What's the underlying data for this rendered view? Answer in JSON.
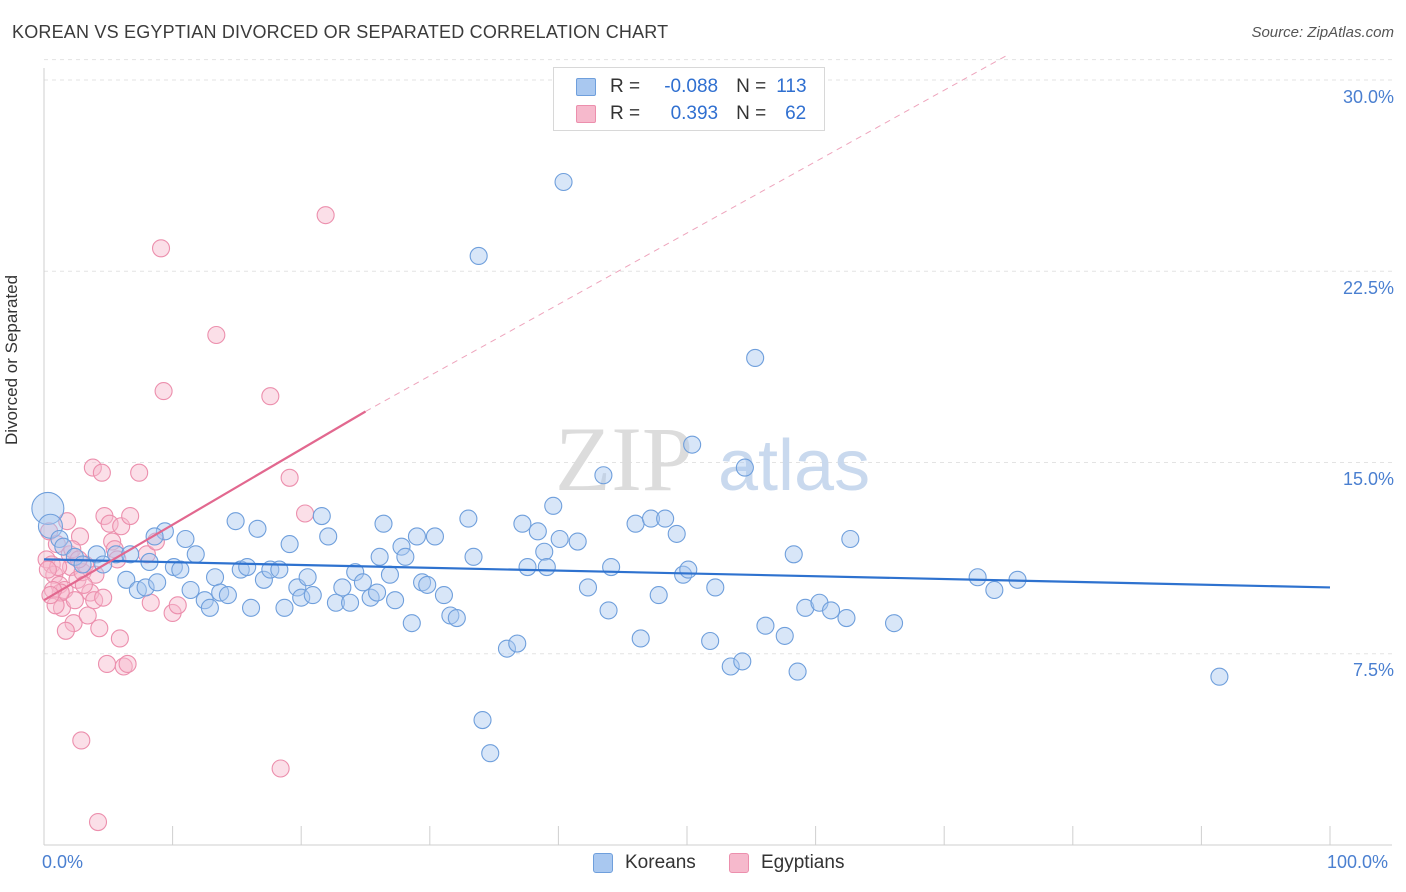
{
  "title": "KOREAN VS EGYPTIAN DIVORCED OR SEPARATED CORRELATION CHART",
  "source": "Source: ZipAtlas.com",
  "watermark": {
    "zip": "ZIP",
    "atlas": "atlas"
  },
  "colors": {
    "koreans_fill": "#a9c8f0",
    "koreans_stroke": "#6f9fdc",
    "koreans_line": "#2e72cf",
    "egyptians_fill": "#f6b9cc",
    "egyptians_stroke": "#ec8fad",
    "egyptians_line": "#e2688f",
    "grid": "#e3e3e3",
    "axis_label": "#4a7fd0"
  },
  "legend": {
    "rows": [
      {
        "r_label": "R =",
        "r_value": "-0.088",
        "n_label": "N =",
        "n_value": "113"
      },
      {
        "r_label": "R =",
        "r_value": "0.393",
        "n_label": "N =",
        "n_value": "62"
      }
    ]
  },
  "bottom_legend": {
    "koreans": "Koreans",
    "egyptians": "Egyptians"
  },
  "chart_data": {
    "type": "scatter",
    "title": "KOREAN VS EGYPTIAN DIVORCED OR SEPARATED CORRELATION CHART",
    "xlabel": "",
    "ylabel": "Divorced or Separated",
    "xlim": [
      0,
      100
    ],
    "ylim": [
      0,
      31
    ],
    "x_ticks": [
      "0.0%",
      "100.0%"
    ],
    "y_ticks": [
      "7.5%",
      "15.0%",
      "22.5%",
      "30.0%"
    ],
    "y_tick_values": [
      7.5,
      15.0,
      22.5,
      30.0
    ],
    "grid": true,
    "legend_position": "top-center",
    "series": [
      {
        "name": "Koreans",
        "trend": {
          "x": [
            0,
            100
          ],
          "y": [
            11.2,
            10.1
          ],
          "style": "solid"
        },
        "points": [
          [
            0.3,
            13.2
          ],
          [
            0.5,
            12.5
          ],
          [
            1.2,
            12.0
          ],
          [
            1.5,
            11.7
          ],
          [
            2.4,
            11.3
          ],
          [
            3.0,
            11.0
          ],
          [
            4.1,
            11.4
          ],
          [
            4.6,
            11.0
          ],
          [
            5.6,
            11.4
          ],
          [
            6.7,
            11.4
          ],
          [
            6.4,
            10.4
          ],
          [
            7.3,
            10.0
          ],
          [
            7.9,
            10.1
          ],
          [
            8.2,
            11.1
          ],
          [
            8.8,
            10.3
          ],
          [
            9.4,
            12.3
          ],
          [
            10.1,
            10.9
          ],
          [
            10.6,
            10.8
          ],
          [
            11.0,
            12.0
          ],
          [
            11.4,
            10.0
          ],
          [
            11.8,
            11.4
          ],
          [
            12.5,
            9.6
          ],
          [
            12.9,
            9.3
          ],
          [
            13.3,
            10.5
          ],
          [
            13.7,
            9.9
          ],
          [
            14.3,
            9.8
          ],
          [
            14.9,
            12.7
          ],
          [
            15.3,
            10.8
          ],
          [
            15.8,
            10.9
          ],
          [
            16.1,
            9.3
          ],
          [
            16.6,
            12.4
          ],
          [
            17.1,
            10.4
          ],
          [
            17.6,
            10.8
          ],
          [
            18.3,
            10.8
          ],
          [
            18.7,
            9.3
          ],
          [
            19.1,
            11.8
          ],
          [
            19.7,
            10.1
          ],
          [
            20.0,
            9.7
          ],
          [
            20.5,
            10.5
          ],
          [
            20.9,
            9.8
          ],
          [
            21.6,
            12.9
          ],
          [
            22.1,
            12.1
          ],
          [
            22.7,
            9.5
          ],
          [
            23.2,
            10.1
          ],
          [
            23.8,
            9.5
          ],
          [
            24.2,
            10.7
          ],
          [
            24.8,
            10.3
          ],
          [
            25.4,
            9.7
          ],
          [
            25.9,
            9.9
          ],
          [
            26.4,
            12.6
          ],
          [
            26.9,
            10.6
          ],
          [
            27.3,
            9.6
          ],
          [
            27.8,
            11.7
          ],
          [
            28.1,
            11.3
          ],
          [
            28.6,
            8.7
          ],
          [
            29.0,
            12.1
          ],
          [
            29.4,
            10.3
          ],
          [
            29.8,
            10.2
          ],
          [
            30.4,
            12.1
          ],
          [
            31.1,
            9.8
          ],
          [
            31.6,
            9.0
          ],
          [
            32.1,
            8.9
          ],
          [
            33.0,
            12.8
          ],
          [
            33.4,
            11.3
          ],
          [
            34.1,
            4.9
          ],
          [
            33.8,
            23.1
          ],
          [
            34.7,
            3.6
          ],
          [
            36.0,
            7.7
          ],
          [
            36.8,
            7.9
          ],
          [
            37.2,
            12.6
          ],
          [
            37.6,
            10.9
          ],
          [
            38.4,
            12.3
          ],
          [
            38.9,
            11.5
          ],
          [
            39.1,
            10.9
          ],
          [
            39.6,
            13.3
          ],
          [
            40.1,
            12.0
          ],
          [
            40.4,
            26.0
          ],
          [
            41.5,
            11.9
          ],
          [
            42.3,
            10.1
          ],
          [
            43.5,
            14.5
          ],
          [
            43.9,
            9.2
          ],
          [
            46.0,
            12.6
          ],
          [
            46.4,
            8.1
          ],
          [
            47.2,
            12.8
          ],
          [
            47.8,
            9.8
          ],
          [
            48.3,
            12.8
          ],
          [
            49.2,
            12.2
          ],
          [
            49.7,
            10.6
          ],
          [
            50.1,
            10.8
          ],
          [
            50.4,
            15.7
          ],
          [
            51.8,
            8.0
          ],
          [
            52.2,
            10.1
          ],
          [
            53.4,
            7.0
          ],
          [
            54.3,
            7.2
          ],
          [
            54.5,
            14.8
          ],
          [
            55.3,
            19.1
          ],
          [
            56.1,
            8.6
          ],
          [
            57.6,
            8.2
          ],
          [
            58.3,
            11.4
          ],
          [
            58.6,
            6.8
          ],
          [
            59.2,
            9.3
          ],
          [
            60.3,
            9.5
          ],
          [
            61.2,
            9.2
          ],
          [
            62.4,
            8.9
          ],
          [
            62.7,
            12.0
          ],
          [
            66.1,
            8.7
          ],
          [
            72.6,
            10.5
          ],
          [
            73.9,
            10.0
          ],
          [
            75.7,
            10.4
          ],
          [
            91.4,
            6.6
          ],
          [
            8.6,
            12.1
          ],
          [
            44.1,
            10.9
          ],
          [
            26.1,
            11.3
          ]
        ]
      },
      {
        "name": "Egyptians",
        "trend": {
          "x": [
            0,
            25
          ],
          "y": [
            9.6,
            17.0
          ],
          "style": "solid",
          "extended": {
            "x": [
              25,
              75
            ],
            "y": [
              17.0,
              31.0
            ],
            "style": "dashed"
          }
        },
        "points": [
          [
            0.2,
            11.2
          ],
          [
            0.4,
            12.3
          ],
          [
            0.6,
            11.0
          ],
          [
            0.8,
            10.6
          ],
          [
            1.0,
            11.8
          ],
          [
            1.2,
            10.2
          ],
          [
            1.4,
            9.3
          ],
          [
            1.6,
            10.0
          ],
          [
            1.8,
            12.7
          ],
          [
            2.0,
            11.4
          ],
          [
            2.1,
            10.9
          ],
          [
            2.3,
            8.7
          ],
          [
            2.4,
            9.6
          ],
          [
            2.6,
            10.4
          ],
          [
            2.8,
            12.1
          ],
          [
            3.0,
            10.7
          ],
          [
            3.2,
            11.0
          ],
          [
            3.4,
            9.0
          ],
          [
            3.6,
            9.9
          ],
          [
            3.8,
            14.8
          ],
          [
            4.0,
            10.6
          ],
          [
            4.3,
            8.5
          ],
          [
            4.5,
            14.6
          ],
          [
            4.7,
            12.9
          ],
          [
            4.9,
            7.1
          ],
          [
            5.1,
            12.6
          ],
          [
            5.3,
            11.9
          ],
          [
            5.5,
            11.6
          ],
          [
            5.7,
            11.2
          ],
          [
            6.0,
            12.5
          ],
          [
            6.2,
            7.0
          ],
          [
            6.5,
            7.1
          ],
          [
            6.7,
            12.9
          ],
          [
            7.4,
            14.6
          ],
          [
            8.0,
            11.4
          ],
          [
            8.3,
            9.5
          ],
          [
            8.7,
            11.9
          ],
          [
            9.1,
            23.4
          ],
          [
            9.3,
            17.8
          ],
          [
            10.0,
            9.1
          ],
          [
            10.4,
            9.4
          ],
          [
            13.4,
            20.0
          ],
          [
            17.6,
            17.6
          ],
          [
            18.4,
            3.0
          ],
          [
            19.1,
            14.4
          ],
          [
            20.3,
            13.0
          ],
          [
            21.9,
            24.7
          ],
          [
            2.9,
            4.1
          ],
          [
            4.2,
            0.9
          ],
          [
            1.3,
            9.9
          ],
          [
            0.7,
            10.0
          ],
          [
            1.7,
            8.4
          ],
          [
            2.2,
            11.6
          ],
          [
            0.9,
            9.4
          ],
          [
            3.9,
            9.6
          ],
          [
            1.1,
            10.9
          ],
          [
            0.5,
            9.8
          ],
          [
            2.7,
            11.2
          ],
          [
            4.6,
            9.7
          ],
          [
            3.1,
            10.2
          ],
          [
            0.3,
            10.8
          ],
          [
            5.9,
            8.1
          ]
        ]
      }
    ]
  }
}
